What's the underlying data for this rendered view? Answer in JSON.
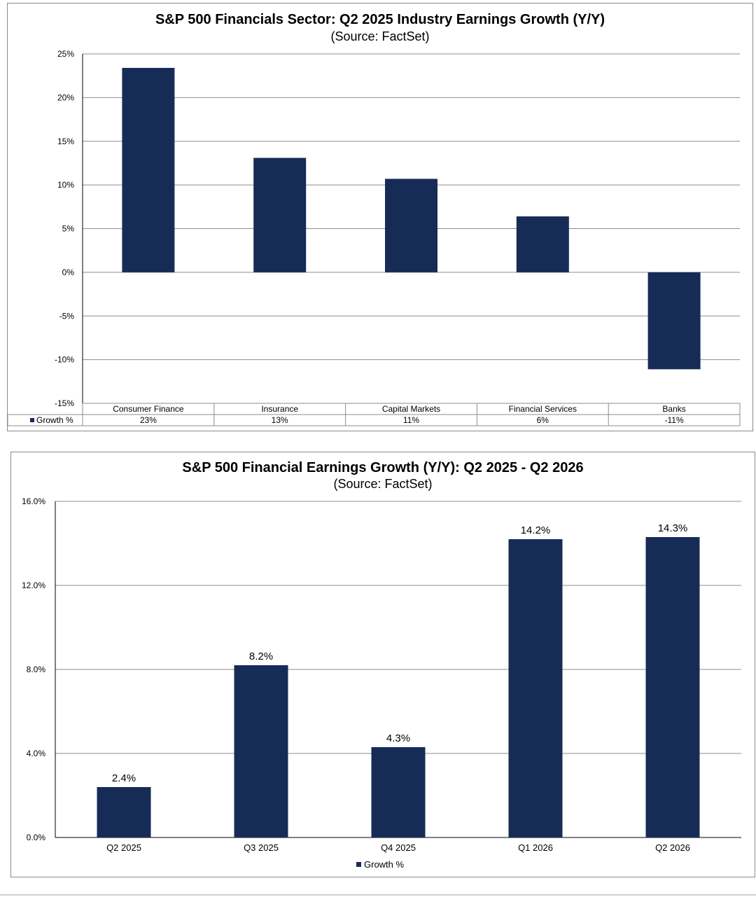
{
  "colors": {
    "bar": "#162c57",
    "grid": "#8c8c8c",
    "axis": "#000000"
  },
  "chart_data": [
    {
      "type": "bar",
      "title": "S&P 500 Financials Sector: Q2 2025 Industry Earnings Growth (Y/Y)",
      "subtitle": "(Source: FactSet)",
      "categories": [
        "Consumer Finance",
        "Insurance",
        "Capital Markets",
        "Financial Services",
        "Banks"
      ],
      "series": [
        {
          "name": "Growth %",
          "values": [
            23.4,
            13.1,
            10.7,
            6.4,
            -11.1
          ]
        }
      ],
      "table_labels": [
        "23%",
        "13%",
        "11%",
        "6%",
        "-11%"
      ],
      "yticks": [
        "-15%",
        "-10%",
        "-5%",
        "0%",
        "5%",
        "10%",
        "15%",
        "20%",
        "25%"
      ],
      "ylim": [
        -15,
        25
      ],
      "grid": true,
      "legend": "data-table-bottom"
    },
    {
      "type": "bar",
      "title": "S&P 500 Financial Earnings Growth (Y/Y): Q2 2025 - Q2 2026",
      "subtitle": "(Source: FactSet)",
      "categories": [
        "Q2 2025",
        "Q3 2025",
        "Q4 2025",
        "Q1 2026",
        "Q2 2026"
      ],
      "series": [
        {
          "name": "Growth %",
          "values": [
            2.4,
            8.2,
            4.3,
            14.2,
            14.3
          ]
        }
      ],
      "data_labels": [
        "2.4%",
        "8.2%",
        "4.3%",
        "14.2%",
        "14.3%"
      ],
      "yticks": [
        "0.0%",
        "4.0%",
        "8.0%",
        "12.0%",
        "16.0%"
      ],
      "ylim": [
        0,
        16
      ],
      "grid": true,
      "legend": "bottom"
    }
  ]
}
